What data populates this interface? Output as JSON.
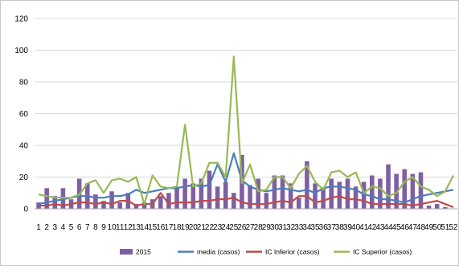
{
  "chart_data": {
    "type": "bar+line",
    "ylim": [
      0,
      120
    ],
    "yticks": [
      0,
      20,
      40,
      60,
      80,
      100,
      120
    ],
    "grid": true,
    "legend_position": "bottom",
    "categories": [
      "1",
      "2",
      "3",
      "4",
      "5",
      "6",
      "7",
      "8",
      "9",
      "10",
      "11",
      "12",
      "13",
      "14",
      "15",
      "16",
      "17",
      "18",
      "19",
      "20",
      "21",
      "22",
      "23",
      "24",
      "25",
      "26",
      "27",
      "28",
      "29",
      "30",
      "31",
      "32",
      "33",
      "34",
      "35",
      "36",
      "37",
      "38",
      "39",
      "40",
      "41",
      "42",
      "43",
      "44",
      "45",
      "46",
      "47",
      "48",
      "49",
      "50",
      "51",
      "52"
    ],
    "series": [
      {
        "name": "2015",
        "kind": "bar",
        "color": "#7F5FA3",
        "values": [
          4,
          13,
          8,
          13,
          6,
          19,
          16,
          9,
          5,
          11,
          4,
          10,
          3,
          4,
          6,
          8,
          10,
          14,
          19,
          16,
          19,
          24,
          14,
          17,
          10,
          34,
          15,
          19,
          10,
          21,
          21,
          16,
          7,
          30,
          16,
          13,
          19,
          17,
          19,
          14,
          17,
          21,
          19,
          28,
          22,
          25,
          22,
          23,
          2,
          3,
          1,
          0
        ]
      },
      {
        "name": "media (casos)",
        "kind": "line",
        "color": "#4A7EBB",
        "values": [
          3,
          4,
          5,
          6,
          7,
          8,
          8,
          7,
          7,
          8,
          8,
          9,
          12,
          10,
          11,
          12,
          13,
          13,
          14,
          15,
          14,
          15,
          28,
          17,
          35,
          18,
          14,
          12,
          11,
          12,
          13,
          12,
          11,
          12,
          10,
          13,
          14,
          14,
          13,
          12,
          9,
          8,
          6,
          6,
          5,
          4,
          6,
          8,
          9,
          10,
          11,
          12
        ]
      },
      {
        "name": "IC Inferior (casos)",
        "kind": "line",
        "color": "#BE4B48",
        "values": [
          2,
          2,
          3,
          2,
          3,
          4,
          4,
          3,
          4,
          3,
          5,
          5,
          2,
          3,
          3,
          10,
          3,
          4,
          4,
          4,
          5,
          5,
          6,
          6,
          7,
          4,
          3,
          3,
          3,
          4,
          5,
          4,
          8,
          8,
          4,
          5,
          7,
          8,
          6,
          6,
          5,
          3,
          3,
          3,
          3,
          3,
          2,
          3,
          4,
          5,
          3,
          1
        ]
      },
      {
        "name": "IC Superior (casos)",
        "kind": "line",
        "color": "#98B954",
        "values": [
          9,
          8,
          7,
          7,
          7,
          9,
          16,
          18,
          10,
          18,
          19,
          17,
          20,
          3,
          21,
          14,
          13,
          14,
          53,
          14,
          16,
          29,
          29,
          20,
          96,
          16,
          28,
          11,
          12,
          20,
          20,
          13,
          22,
          27,
          17,
          12,
          23,
          24,
          20,
          23,
          10,
          14,
          13,
          8,
          10,
          17,
          20,
          14,
          12,
          8,
          11,
          21
        ]
      }
    ]
  }
}
